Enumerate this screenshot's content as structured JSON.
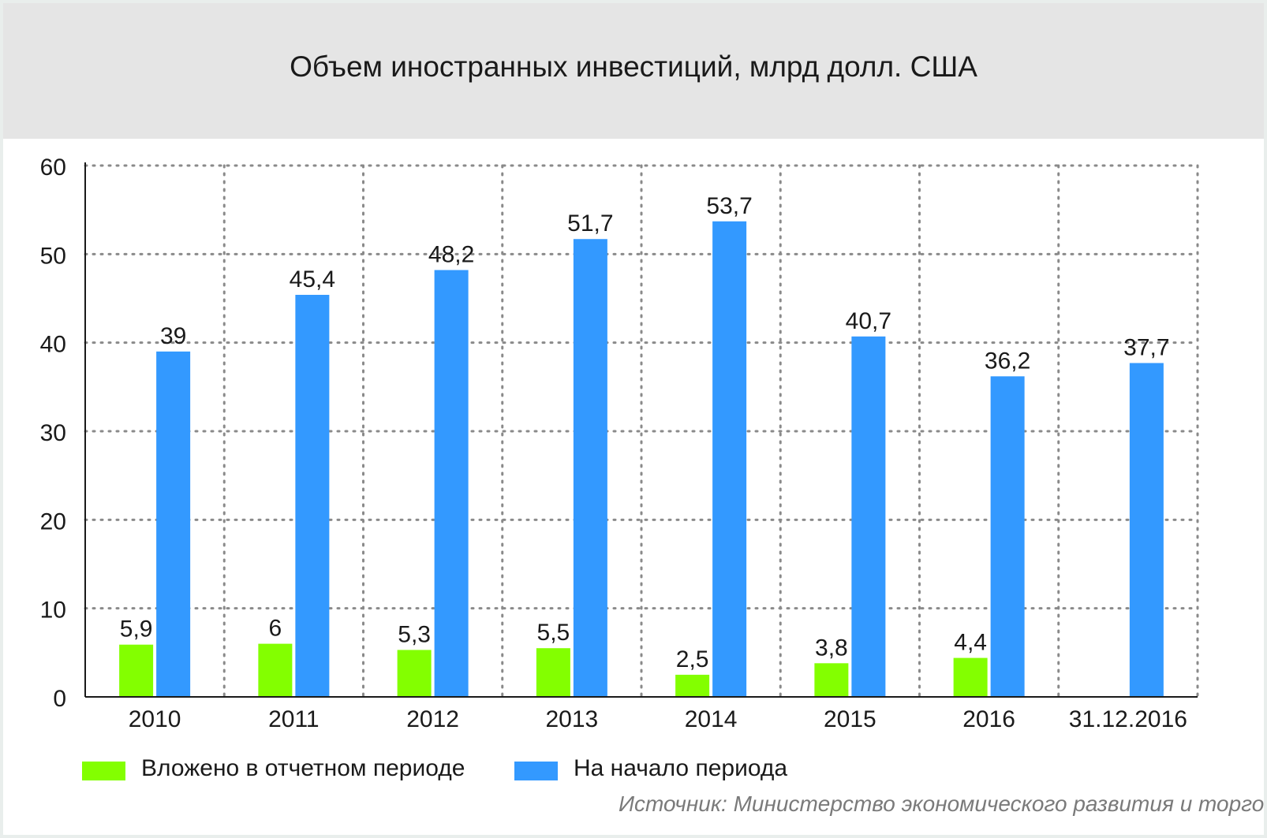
{
  "title": "Объем иностранных инвестиций, млрд долл. США",
  "source": "Источник: Министерство экономического развития и торговли.",
  "chart_data": {
    "type": "bar",
    "title": "Объем иностранных инвестиций, млрд долл. США",
    "categories": [
      "2010",
      "2011",
      "2012",
      "2013",
      "2014",
      "2015",
      "2016",
      "31.12.2016"
    ],
    "series": [
      {
        "name": "Вложено в отчетном периоде",
        "color": "#83ff00",
        "values": [
          5.9,
          6,
          5.3,
          5.5,
          2.5,
          3.8,
          4.4,
          null
        ],
        "labels": [
          "5,9",
          "6",
          "5,3",
          "5,5",
          "2,5",
          "3,8",
          "4,4",
          ""
        ]
      },
      {
        "name": "На начало периода",
        "color": "#3399ff",
        "values": [
          39,
          45.4,
          48.2,
          51.7,
          53.7,
          40.7,
          36.2,
          37.7
        ],
        "labels": [
          "39",
          "45,4",
          "48,2",
          "51,7",
          "53,7",
          "40,7",
          "36,2",
          "37,7"
        ]
      }
    ],
    "ylim": [
      0,
      60
    ],
    "yticks": [
      0,
      10,
      20,
      30,
      40,
      50,
      60
    ],
    "grid": true,
    "legend": "bottom-left"
  }
}
